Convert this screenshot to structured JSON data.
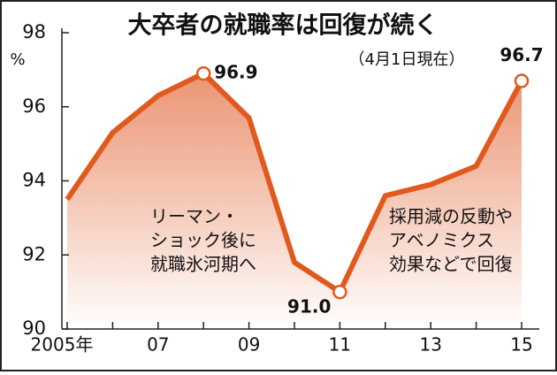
{
  "chart_data": {
    "type": "line",
    "title": "大卒者の就職率は回復が続く",
    "subtitle": "（4月1日現在）",
    "y_unit": "%",
    "categories": [
      "2005年",
      null,
      "07",
      null,
      "09",
      null,
      "11",
      null,
      "13",
      null,
      "15"
    ],
    "values": [
      93.5,
      95.3,
      96.3,
      96.9,
      95.7,
      91.8,
      91.0,
      93.6,
      93.9,
      94.4,
      96.7
    ],
    "value_labels": [
      null,
      null,
      null,
      "96.9",
      null,
      null,
      "91.0",
      null,
      null,
      null,
      "96.7"
    ],
    "color": "#e05a1e",
    "ylim": [
      90,
      98
    ],
    "yticks": [
      90,
      92,
      94,
      96,
      98
    ],
    "grid": false,
    "annotations": [
      [
        "リーマン・",
        "ショック後に",
        "就職氷河期へ"
      ],
      [
        "採用減の反動や",
        "アベノミクス",
        "効果などで回復"
      ]
    ]
  }
}
